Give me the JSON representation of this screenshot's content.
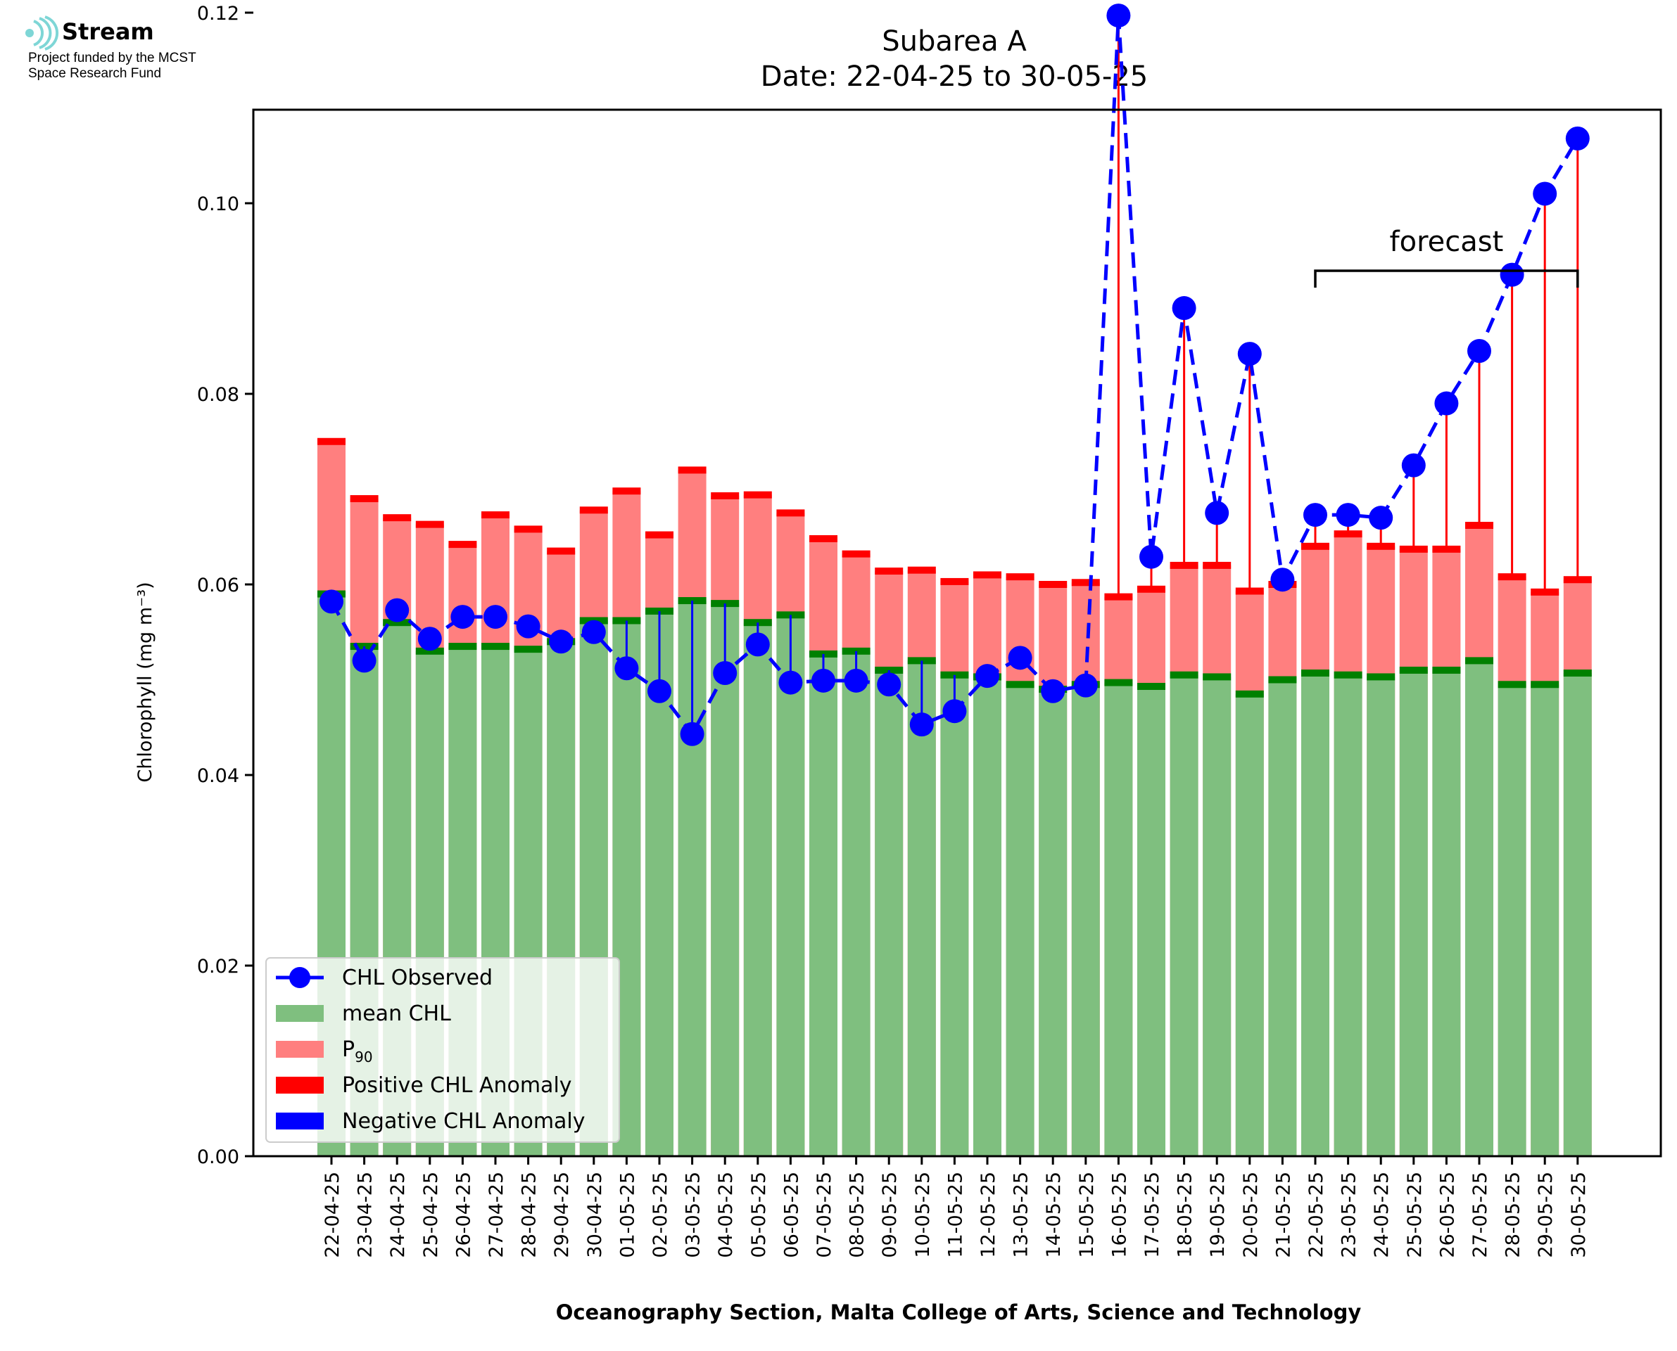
{
  "logo": {
    "name": "Stream",
    "line1": "Project funded by the MCST",
    "line2": "Space Research Fund",
    "icon": "stream-waves-icon",
    "color": "#7ed6d6"
  },
  "chart_data": {
    "type": "bar",
    "title": "Subarea A",
    "subtitle": "Date: 22-04-25 to 30-05-25",
    "xlabel": "Oceanography Section, Malta College of Arts, Science and Technology",
    "ylabel": "Chlorophyll (mg m⁻³)",
    "ylim": [
      0,
      0.132
    ],
    "yticks": [
      "0.00",
      "0.02",
      "0.04",
      "0.06",
      "0.08",
      "0.10",
      "0.12"
    ],
    "ytick_values": [
      0,
      0.02,
      0.04,
      0.06,
      0.08,
      0.1,
      0.12
    ],
    "grid": false,
    "categories": [
      "22-04-25",
      "23-04-25",
      "24-04-25",
      "25-04-25",
      "26-04-25",
      "27-04-25",
      "28-04-25",
      "29-04-25",
      "30-04-25",
      "01-05-25",
      "02-05-25",
      "03-05-25",
      "04-05-25",
      "05-05-25",
      "06-05-25",
      "07-05-25",
      "08-05-25",
      "09-05-25",
      "10-05-25",
      "11-05-25",
      "12-05-25",
      "13-05-25",
      "14-05-25",
      "15-05-25",
      "16-05-25",
      "17-05-25",
      "18-05-25",
      "19-05-25",
      "20-05-25",
      "21-05-25",
      "22-05-25",
      "23-05-25",
      "24-05-25",
      "25-05-25",
      "26-05-25",
      "27-05-25",
      "28-05-25",
      "29-05-25",
      "30-05-25"
    ],
    "series": [
      {
        "name": "mean CHL",
        "color": "#7fbf7f",
        "values": [
          0.059,
          0.0535,
          0.056,
          0.053,
          0.0535,
          0.0535,
          0.0532,
          0.054,
          0.0562,
          0.0562,
          0.0572,
          0.0583,
          0.058,
          0.056,
          0.0568,
          0.0527,
          0.053,
          0.051,
          0.052,
          0.0505,
          0.0503,
          0.0495,
          0.049,
          0.0495,
          0.0497,
          0.0493,
          0.0505,
          0.0503,
          0.0485,
          0.05,
          0.0507,
          0.0505,
          0.0503,
          0.051,
          0.051,
          0.052,
          0.0495,
          0.0495,
          0.0507
        ]
      },
      {
        "name": "P₉₀",
        "color": "#ff7f7f",
        "values": [
          0.075,
          0.069,
          0.067,
          0.0663,
          0.0642,
          0.0673,
          0.0658,
          0.0635,
          0.0678,
          0.0698,
          0.0652,
          0.072,
          0.0693,
          0.0694,
          0.0675,
          0.0648,
          0.0632,
          0.0614,
          0.0615,
          0.0603,
          0.061,
          0.0608,
          0.06,
          0.0602,
          0.0587,
          0.0595,
          0.062,
          0.062,
          0.0593,
          0.06,
          0.064,
          0.0653,
          0.064,
          0.0637,
          0.0637,
          0.0662,
          0.0608,
          0.0592,
          0.0605
        ]
      },
      {
        "name": "CHL Observed",
        "color": "#0000ff",
        "values": [
          0.0582,
          0.052,
          0.0573,
          0.0543,
          0.0566,
          0.0566,
          0.0556,
          0.054,
          0.055,
          0.0512,
          0.0488,
          0.0443,
          0.0507,
          0.0537,
          0.0497,
          0.0499,
          0.0499,
          0.0495,
          0.0453,
          0.0467,
          0.0504,
          0.0523,
          0.0488,
          0.0494,
          0.1197,
          0.0629,
          0.089,
          0.0675,
          0.0842,
          0.0605,
          0.0673,
          0.0673,
          0.067,
          0.0725,
          0.079,
          0.0845,
          0.0925,
          0.101,
          0.1068
        ]
      }
    ],
    "legend": {
      "placement": "lower-left",
      "items": [
        {
          "label": "CHL Observed",
          "key": "observed"
        },
        {
          "label": "mean CHL",
          "key": "mean"
        },
        {
          "label": "P90",
          "key": "p90"
        },
        {
          "label": "Positive CHL Anomaly",
          "key": "pos"
        },
        {
          "label": "Negative CHL Anomaly",
          "key": "neg"
        }
      ]
    },
    "annotation": {
      "text": "forecast",
      "from": "22-05-25",
      "to": "30-05-25"
    },
    "forecast_start_index": 30,
    "colors": {
      "mean": "#7fbf7f",
      "mean_cap": "#008000",
      "p90": "#ff7f7f",
      "p90_cap": "#ff0000",
      "observed": "#0000ff",
      "positive": "#ff0000",
      "negative": "#0000ff"
    }
  }
}
